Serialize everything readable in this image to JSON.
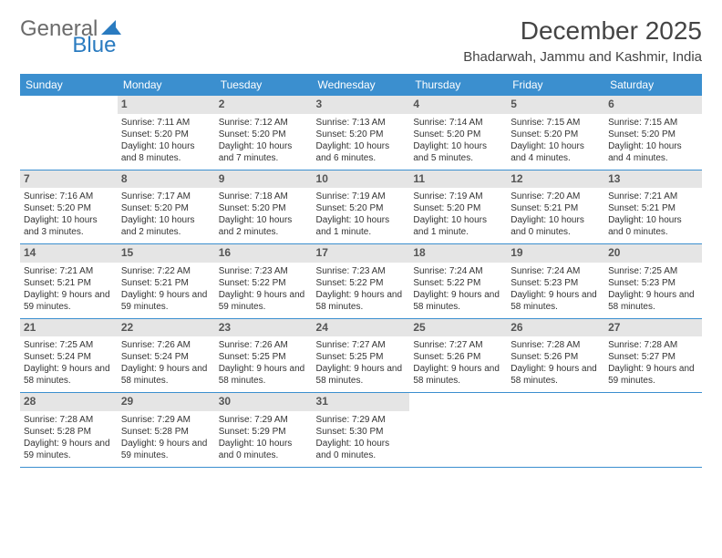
{
  "logo": {
    "text1": "General",
    "text2": "Blue"
  },
  "header": {
    "month_title": "December 2025",
    "location": "Bhadarwah, Jammu and Kashmir, India"
  },
  "colors": {
    "header_bg": "#3b8fcf",
    "header_text": "#ffffff",
    "daynum_bg": "#e5e5e5",
    "rule": "#3b8fcf",
    "logo_gray": "#6b6b6b",
    "logo_blue": "#2a7bc0"
  },
  "weekdays": [
    "Sunday",
    "Monday",
    "Tuesday",
    "Wednesday",
    "Thursday",
    "Friday",
    "Saturday"
  ],
  "weeks": [
    [
      {
        "day": "",
        "sunrise": "",
        "sunset": "",
        "daylight": ""
      },
      {
        "day": "1",
        "sunrise": "Sunrise: 7:11 AM",
        "sunset": "Sunset: 5:20 PM",
        "daylight": "Daylight: 10 hours and 8 minutes."
      },
      {
        "day": "2",
        "sunrise": "Sunrise: 7:12 AM",
        "sunset": "Sunset: 5:20 PM",
        "daylight": "Daylight: 10 hours and 7 minutes."
      },
      {
        "day": "3",
        "sunrise": "Sunrise: 7:13 AM",
        "sunset": "Sunset: 5:20 PM",
        "daylight": "Daylight: 10 hours and 6 minutes."
      },
      {
        "day": "4",
        "sunrise": "Sunrise: 7:14 AM",
        "sunset": "Sunset: 5:20 PM",
        "daylight": "Daylight: 10 hours and 5 minutes."
      },
      {
        "day": "5",
        "sunrise": "Sunrise: 7:15 AM",
        "sunset": "Sunset: 5:20 PM",
        "daylight": "Daylight: 10 hours and 4 minutes."
      },
      {
        "day": "6",
        "sunrise": "Sunrise: 7:15 AM",
        "sunset": "Sunset: 5:20 PM",
        "daylight": "Daylight: 10 hours and 4 minutes."
      }
    ],
    [
      {
        "day": "7",
        "sunrise": "Sunrise: 7:16 AM",
        "sunset": "Sunset: 5:20 PM",
        "daylight": "Daylight: 10 hours and 3 minutes."
      },
      {
        "day": "8",
        "sunrise": "Sunrise: 7:17 AM",
        "sunset": "Sunset: 5:20 PM",
        "daylight": "Daylight: 10 hours and 2 minutes."
      },
      {
        "day": "9",
        "sunrise": "Sunrise: 7:18 AM",
        "sunset": "Sunset: 5:20 PM",
        "daylight": "Daylight: 10 hours and 2 minutes."
      },
      {
        "day": "10",
        "sunrise": "Sunrise: 7:19 AM",
        "sunset": "Sunset: 5:20 PM",
        "daylight": "Daylight: 10 hours and 1 minute."
      },
      {
        "day": "11",
        "sunrise": "Sunrise: 7:19 AM",
        "sunset": "Sunset: 5:20 PM",
        "daylight": "Daylight: 10 hours and 1 minute."
      },
      {
        "day": "12",
        "sunrise": "Sunrise: 7:20 AM",
        "sunset": "Sunset: 5:21 PM",
        "daylight": "Daylight: 10 hours and 0 minutes."
      },
      {
        "day": "13",
        "sunrise": "Sunrise: 7:21 AM",
        "sunset": "Sunset: 5:21 PM",
        "daylight": "Daylight: 10 hours and 0 minutes."
      }
    ],
    [
      {
        "day": "14",
        "sunrise": "Sunrise: 7:21 AM",
        "sunset": "Sunset: 5:21 PM",
        "daylight": "Daylight: 9 hours and 59 minutes."
      },
      {
        "day": "15",
        "sunrise": "Sunrise: 7:22 AM",
        "sunset": "Sunset: 5:21 PM",
        "daylight": "Daylight: 9 hours and 59 minutes."
      },
      {
        "day": "16",
        "sunrise": "Sunrise: 7:23 AM",
        "sunset": "Sunset: 5:22 PM",
        "daylight": "Daylight: 9 hours and 59 minutes."
      },
      {
        "day": "17",
        "sunrise": "Sunrise: 7:23 AM",
        "sunset": "Sunset: 5:22 PM",
        "daylight": "Daylight: 9 hours and 58 minutes."
      },
      {
        "day": "18",
        "sunrise": "Sunrise: 7:24 AM",
        "sunset": "Sunset: 5:22 PM",
        "daylight": "Daylight: 9 hours and 58 minutes."
      },
      {
        "day": "19",
        "sunrise": "Sunrise: 7:24 AM",
        "sunset": "Sunset: 5:23 PM",
        "daylight": "Daylight: 9 hours and 58 minutes."
      },
      {
        "day": "20",
        "sunrise": "Sunrise: 7:25 AM",
        "sunset": "Sunset: 5:23 PM",
        "daylight": "Daylight: 9 hours and 58 minutes."
      }
    ],
    [
      {
        "day": "21",
        "sunrise": "Sunrise: 7:25 AM",
        "sunset": "Sunset: 5:24 PM",
        "daylight": "Daylight: 9 hours and 58 minutes."
      },
      {
        "day": "22",
        "sunrise": "Sunrise: 7:26 AM",
        "sunset": "Sunset: 5:24 PM",
        "daylight": "Daylight: 9 hours and 58 minutes."
      },
      {
        "day": "23",
        "sunrise": "Sunrise: 7:26 AM",
        "sunset": "Sunset: 5:25 PM",
        "daylight": "Daylight: 9 hours and 58 minutes."
      },
      {
        "day": "24",
        "sunrise": "Sunrise: 7:27 AM",
        "sunset": "Sunset: 5:25 PM",
        "daylight": "Daylight: 9 hours and 58 minutes."
      },
      {
        "day": "25",
        "sunrise": "Sunrise: 7:27 AM",
        "sunset": "Sunset: 5:26 PM",
        "daylight": "Daylight: 9 hours and 58 minutes."
      },
      {
        "day": "26",
        "sunrise": "Sunrise: 7:28 AM",
        "sunset": "Sunset: 5:26 PM",
        "daylight": "Daylight: 9 hours and 58 minutes."
      },
      {
        "day": "27",
        "sunrise": "Sunrise: 7:28 AM",
        "sunset": "Sunset: 5:27 PM",
        "daylight": "Daylight: 9 hours and 59 minutes."
      }
    ],
    [
      {
        "day": "28",
        "sunrise": "Sunrise: 7:28 AM",
        "sunset": "Sunset: 5:28 PM",
        "daylight": "Daylight: 9 hours and 59 minutes."
      },
      {
        "day": "29",
        "sunrise": "Sunrise: 7:29 AM",
        "sunset": "Sunset: 5:28 PM",
        "daylight": "Daylight: 9 hours and 59 minutes."
      },
      {
        "day": "30",
        "sunrise": "Sunrise: 7:29 AM",
        "sunset": "Sunset: 5:29 PM",
        "daylight": "Daylight: 10 hours and 0 minutes."
      },
      {
        "day": "31",
        "sunrise": "Sunrise: 7:29 AM",
        "sunset": "Sunset: 5:30 PM",
        "daylight": "Daylight: 10 hours and 0 minutes."
      },
      {
        "day": "",
        "sunrise": "",
        "sunset": "",
        "daylight": ""
      },
      {
        "day": "",
        "sunrise": "",
        "sunset": "",
        "daylight": ""
      },
      {
        "day": "",
        "sunrise": "",
        "sunset": "",
        "daylight": ""
      }
    ]
  ]
}
